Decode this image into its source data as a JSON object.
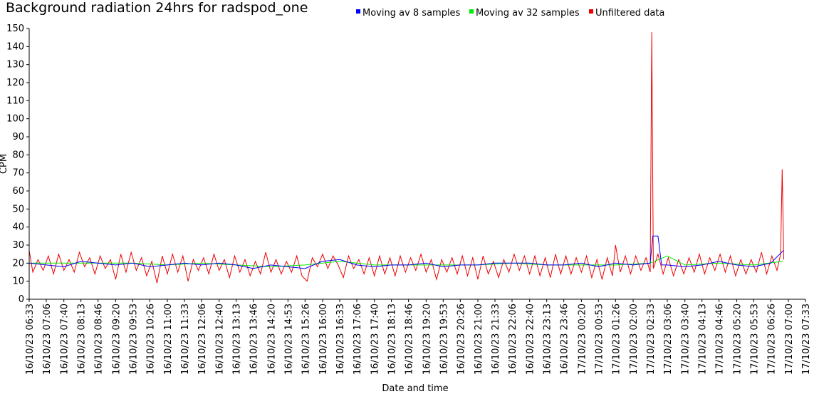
{
  "chart_data": {
    "type": "line",
    "title": "Background radiation 24hrs for radspod_one",
    "xlabel": "Date and time",
    "ylabel": "CPM",
    "ylim": [
      0,
      150
    ],
    "yticks": [
      0,
      10,
      20,
      30,
      40,
      50,
      60,
      70,
      80,
      90,
      100,
      110,
      120,
      130,
      140,
      150
    ],
    "xlim": [
      "16/10/23 06:33",
      "17/10/23 07:33"
    ],
    "xtick_labels": [
      "16/10/23 06:33",
      "16/10/23 07:06",
      "16/10/23 07:40",
      "16/10/23 08:13",
      "16/10/23 08:46",
      "16/10/23 09:20",
      "16/10/23 09:53",
      "16/10/23 10:26",
      "16/10/23 11:00",
      "16/10/23 11:33",
      "16/10/23 12:06",
      "16/10/23 12:40",
      "16/10/23 13:13",
      "16/10/23 13:46",
      "16/10/23 14:20",
      "16/10/23 14:53",
      "16/10/23 15:26",
      "16/10/23 16:00",
      "16/10/23 16:33",
      "16/10/23 17:06",
      "16/10/23 17:40",
      "16/10/23 18:13",
      "16/10/23 18:46",
      "16/10/23 19:20",
      "16/10/23 19:53",
      "16/10/23 20:26",
      "16/10/23 21:00",
      "16/10/23 21:33",
      "16/10/23 22:06",
      "16/10/23 22:40",
      "16/10/23 23:13",
      "16/10/23 23:46",
      "17/10/23 00:20",
      "17/10/23 00:53",
      "17/10/23 01:26",
      "17/10/23 02:00",
      "17/10/23 02:33",
      "17/10/23 03:06",
      "17/10/23 03:40",
      "17/10/23 04:13",
      "17/10/23 04:46",
      "17/10/23 05:20",
      "17/10/23 05:53",
      "17/10/23 06:26",
      "17/10/23 07:00",
      "17/10/23 07:33"
    ],
    "legend_position": "top",
    "grid": false,
    "series": [
      {
        "name": "Moving av 8 samples",
        "color": "#0000ff",
        "points": [
          [
            "16/10/23 06:33",
            20
          ],
          [
            "16/10/23 07:06",
            19
          ],
          [
            "16/10/23 07:40",
            18
          ],
          [
            "16/10/23 08:13",
            21
          ],
          [
            "16/10/23 08:46",
            20
          ],
          [
            "16/10/23 09:20",
            19
          ],
          [
            "16/10/23 09:53",
            20
          ],
          [
            "16/10/23 10:26",
            18
          ],
          [
            "16/10/23 11:00",
            19
          ],
          [
            "16/10/23 11:33",
            20
          ],
          [
            "16/10/23 12:06",
            19
          ],
          [
            "16/10/23 12:40",
            20
          ],
          [
            "16/10/23 13:13",
            19
          ],
          [
            "16/10/23 13:46",
            17
          ],
          [
            "16/10/23 14:20",
            19
          ],
          [
            "16/10/23 14:53",
            18
          ],
          [
            "16/10/23 15:26",
            17
          ],
          [
            "16/10/23 16:00",
            21
          ],
          [
            "16/10/23 16:33",
            22
          ],
          [
            "16/10/23 17:06",
            19
          ],
          [
            "16/10/23 17:40",
            18
          ],
          [
            "16/10/23 18:13",
            19
          ],
          [
            "16/10/23 18:46",
            19
          ],
          [
            "16/10/23 19:20",
            20
          ],
          [
            "16/10/23 19:53",
            18
          ],
          [
            "16/10/23 20:26",
            19
          ],
          [
            "16/10/23 21:00",
            19
          ],
          [
            "16/10/23 21:33",
            20
          ],
          [
            "16/10/23 22:06",
            20
          ],
          [
            "16/10/23 22:40",
            20
          ],
          [
            "16/10/23 23:13",
            19
          ],
          [
            "16/10/23 23:46",
            19
          ],
          [
            "17/10/23 00:20",
            20
          ],
          [
            "17/10/23 00:53",
            18
          ],
          [
            "17/10/23 01:26",
            20
          ],
          [
            "17/10/23 02:00",
            19
          ],
          [
            "17/10/23 02:33",
            20
          ],
          [
            "17/10/23 02:38",
            35
          ],
          [
            "17/10/23 02:48",
            35
          ],
          [
            "17/10/23 02:55",
            19
          ],
          [
            "17/10/23 03:06",
            19
          ],
          [
            "17/10/23 03:40",
            18
          ],
          [
            "17/10/23 04:13",
            19
          ],
          [
            "17/10/23 04:46",
            21
          ],
          [
            "17/10/23 05:20",
            19
          ],
          [
            "17/10/23 05:53",
            18
          ],
          [
            "17/10/23 06:26",
            20
          ],
          [
            "17/10/23 06:50",
            27
          ]
        ]
      },
      {
        "name": "Moving av 32 samples",
        "color": "#00ee00",
        "points": [
          [
            "16/10/23 06:33",
            20
          ],
          [
            "16/10/23 07:40",
            20
          ],
          [
            "16/10/23 08:46",
            20
          ],
          [
            "16/10/23 09:53",
            20
          ],
          [
            "16/10/23 11:00",
            19
          ],
          [
            "16/10/23 12:06",
            20
          ],
          [
            "16/10/23 13:13",
            19
          ],
          [
            "16/10/23 14:20",
            18
          ],
          [
            "16/10/23 15:26",
            19
          ],
          [
            "16/10/23 16:33",
            21
          ],
          [
            "16/10/23 17:40",
            19
          ],
          [
            "16/10/23 18:46",
            19
          ],
          [
            "16/10/23 19:53",
            19
          ],
          [
            "16/10/23 21:00",
            19
          ],
          [
            "16/10/23 22:06",
            20
          ],
          [
            "16/10/23 23:13",
            19
          ],
          [
            "17/10/23 00:20",
            19
          ],
          [
            "17/10/23 01:26",
            19
          ],
          [
            "17/10/23 02:33",
            20
          ],
          [
            "17/10/23 03:06",
            24
          ],
          [
            "17/10/23 03:40",
            19
          ],
          [
            "17/10/23 04:46",
            20
          ],
          [
            "17/10/23 05:53",
            19
          ],
          [
            "17/10/23 06:50",
            21
          ]
        ]
      },
      {
        "name": "Unfiltered data",
        "color": "#ee0000",
        "points": [
          [
            "16/10/23 06:33",
            27
          ],
          [
            "16/10/23 06:40",
            15
          ],
          [
            "16/10/23 06:50",
            22
          ],
          [
            "16/10/23 07:00",
            16
          ],
          [
            "16/10/23 07:10",
            24
          ],
          [
            "16/10/23 07:20",
            14
          ],
          [
            "16/10/23 07:30",
            25
          ],
          [
            "16/10/23 07:40",
            16
          ],
          [
            "16/10/23 07:50",
            22
          ],
          [
            "16/10/23 08:00",
            15
          ],
          [
            "16/10/23 08:10",
            26
          ],
          [
            "16/10/23 08:20",
            18
          ],
          [
            "16/10/23 08:30",
            23
          ],
          [
            "16/10/23 08:40",
            14
          ],
          [
            "16/10/23 08:50",
            24
          ],
          [
            "16/10/23 09:00",
            17
          ],
          [
            "16/10/23 09:10",
            22
          ],
          [
            "16/10/23 09:20",
            11
          ],
          [
            "16/10/23 09:30",
            25
          ],
          [
            "16/10/23 09:40",
            15
          ],
          [
            "16/10/23 09:50",
            26
          ],
          [
            "16/10/23 10:00",
            16
          ],
          [
            "16/10/23 10:10",
            23
          ],
          [
            "16/10/23 10:20",
            13
          ],
          [
            "16/10/23 10:30",
            21
          ],
          [
            "16/10/23 10:40",
            9
          ],
          [
            "16/10/23 10:50",
            24
          ],
          [
            "16/10/23 11:00",
            14
          ],
          [
            "16/10/23 11:10",
            25
          ],
          [
            "16/10/23 11:20",
            15
          ],
          [
            "16/10/23 11:30",
            24
          ],
          [
            "16/10/23 11:40",
            10
          ],
          [
            "16/10/23 11:50",
            22
          ],
          [
            "16/10/23 12:00",
            16
          ],
          [
            "16/10/23 12:10",
            23
          ],
          [
            "16/10/23 12:20",
            14
          ],
          [
            "16/10/23 12:30",
            25
          ],
          [
            "16/10/23 12:40",
            16
          ],
          [
            "16/10/23 12:50",
            22
          ],
          [
            "16/10/23 13:00",
            12
          ],
          [
            "16/10/23 13:10",
            24
          ],
          [
            "16/10/23 13:20",
            15
          ],
          [
            "16/10/23 13:30",
            22
          ],
          [
            "16/10/23 13:40",
            13
          ],
          [
            "16/10/23 13:50",
            21
          ],
          [
            "16/10/23 14:00",
            14
          ],
          [
            "16/10/23 14:10",
            26
          ],
          [
            "16/10/23 14:20",
            15
          ],
          [
            "16/10/23 14:30",
            22
          ],
          [
            "16/10/23 14:40",
            14
          ],
          [
            "16/10/23 14:50",
            21
          ],
          [
            "16/10/23 15:00",
            15
          ],
          [
            "16/10/23 15:10",
            24
          ],
          [
            "16/10/23 15:20",
            13
          ],
          [
            "16/10/23 15:30",
            10
          ],
          [
            "16/10/23 15:40",
            23
          ],
          [
            "16/10/23 15:50",
            18
          ],
          [
            "16/10/23 16:00",
            25
          ],
          [
            "16/10/23 16:10",
            17
          ],
          [
            "16/10/23 16:20",
            24
          ],
          [
            "16/10/23 16:30",
            19
          ],
          [
            "16/10/23 16:40",
            12
          ],
          [
            "16/10/23 16:50",
            24
          ],
          [
            "16/10/23 17:00",
            17
          ],
          [
            "16/10/23 17:10",
            22
          ],
          [
            "16/10/23 17:20",
            14
          ],
          [
            "16/10/23 17:30",
            23
          ],
          [
            "16/10/23 17:40",
            13
          ],
          [
            "16/10/23 17:50",
            24
          ],
          [
            "16/10/23 18:00",
            14
          ],
          [
            "16/10/23 18:10",
            23
          ],
          [
            "16/10/23 18:20",
            13
          ],
          [
            "16/10/23 18:30",
            24
          ],
          [
            "16/10/23 18:40",
            15
          ],
          [
            "16/10/23 18:50",
            23
          ],
          [
            "16/10/23 19:00",
            16
          ],
          [
            "16/10/23 19:10",
            25
          ],
          [
            "16/10/23 19:20",
            15
          ],
          [
            "16/10/23 19:30",
            22
          ],
          [
            "16/10/23 19:40",
            11
          ],
          [
            "16/10/23 19:50",
            22
          ],
          [
            "16/10/23 20:00",
            15
          ],
          [
            "16/10/23 20:10",
            23
          ],
          [
            "16/10/23 20:20",
            14
          ],
          [
            "16/10/23 20:30",
            24
          ],
          [
            "16/10/23 20:40",
            13
          ],
          [
            "16/10/23 20:50",
            23
          ],
          [
            "16/10/23 21:00",
            11
          ],
          [
            "16/10/23 21:10",
            24
          ],
          [
            "16/10/23 21:20",
            14
          ],
          [
            "16/10/23 21:30",
            21
          ],
          [
            "16/10/23 21:40",
            12
          ],
          [
            "16/10/23 21:50",
            22
          ],
          [
            "16/10/23 22:00",
            15
          ],
          [
            "16/10/23 22:10",
            25
          ],
          [
            "16/10/23 22:20",
            16
          ],
          [
            "16/10/23 22:30",
            24
          ],
          [
            "16/10/23 22:40",
            14
          ],
          [
            "16/10/23 22:50",
            24
          ],
          [
            "16/10/23 23:00",
            13
          ],
          [
            "16/10/23 23:10",
            23
          ],
          [
            "16/10/23 23:20",
            12
          ],
          [
            "16/10/23 23:30",
            25
          ],
          [
            "16/10/23 23:40",
            14
          ],
          [
            "16/10/23 23:50",
            24
          ],
          [
            "17/10/23 00:00",
            14
          ],
          [
            "17/10/23 00:10",
            23
          ],
          [
            "17/10/23 00:20",
            15
          ],
          [
            "17/10/23 00:30",
            24
          ],
          [
            "17/10/23 00:40",
            12
          ],
          [
            "17/10/23 00:50",
            22
          ],
          [
            "17/10/23 01:00",
            11
          ],
          [
            "17/10/23 01:10",
            23
          ],
          [
            "17/10/23 01:20",
            13
          ],
          [
            "17/10/23 01:26",
            30
          ],
          [
            "17/10/23 01:35",
            15
          ],
          [
            "17/10/23 01:45",
            24
          ],
          [
            "17/10/23 01:55",
            14
          ],
          [
            "17/10/23 02:05",
            24
          ],
          [
            "17/10/23 02:15",
            16
          ],
          [
            "17/10/23 02:25",
            23
          ],
          [
            "17/10/23 02:33",
            15
          ],
          [
            "17/10/23 02:36",
            148
          ],
          [
            "17/10/23 02:39",
            17
          ],
          [
            "17/10/23 02:48",
            25
          ],
          [
            "17/10/23 02:58",
            14
          ],
          [
            "17/10/23 03:08",
            23
          ],
          [
            "17/10/23 03:18",
            13
          ],
          [
            "17/10/23 03:28",
            22
          ],
          [
            "17/10/23 03:38",
            14
          ],
          [
            "17/10/23 03:48",
            23
          ],
          [
            "17/10/23 03:58",
            15
          ],
          [
            "17/10/23 04:08",
            25
          ],
          [
            "17/10/23 04:18",
            14
          ],
          [
            "17/10/23 04:28",
            23
          ],
          [
            "17/10/23 04:38",
            16
          ],
          [
            "17/10/23 04:48",
            25
          ],
          [
            "17/10/23 04:58",
            15
          ],
          [
            "17/10/23 05:08",
            24
          ],
          [
            "17/10/23 05:18",
            13
          ],
          [
            "17/10/23 05:28",
            22
          ],
          [
            "17/10/23 05:38",
            14
          ],
          [
            "17/10/23 05:48",
            22
          ],
          [
            "17/10/23 05:58",
            15
          ],
          [
            "17/10/23 06:08",
            26
          ],
          [
            "17/10/23 06:18",
            14
          ],
          [
            "17/10/23 06:28",
            24
          ],
          [
            "17/10/23 06:38",
            16
          ],
          [
            "17/10/23 06:45",
            25
          ],
          [
            "17/10/23 06:48",
            72
          ],
          [
            "17/10/23 06:51",
            22
          ]
        ]
      }
    ]
  }
}
